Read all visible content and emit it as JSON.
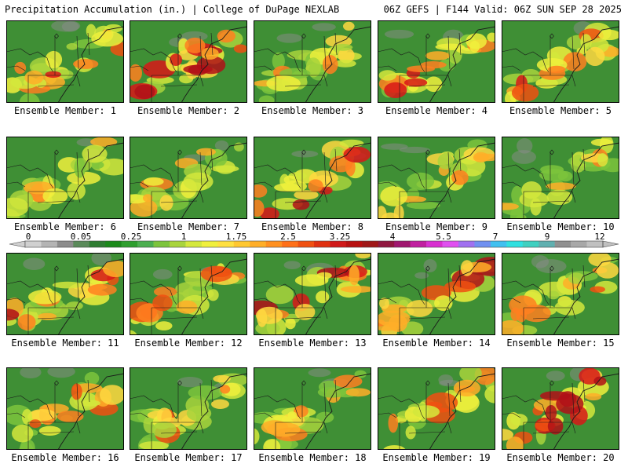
{
  "header": {
    "left": "Precipitation Accumulation (in.) | College of DuPage NEXLAB",
    "right": "06Z GEFS | F144 Valid: 06Z SUN SEP 28 2025"
  },
  "colorbar": {
    "labels": [
      "0",
      "0.05",
      "0.25",
      "1",
      "1.75",
      "2.5",
      "3.25",
      "4",
      "5.5",
      "7",
      "9",
      "12"
    ],
    "colors": [
      "#d0d0d0",
      "#b4b4b4",
      "#8c8c8c",
      "#5a8a5a",
      "#2e7d32",
      "#1b8a1b",
      "#2e9e2e",
      "#4caf50",
      "#7cc43c",
      "#a8d43c",
      "#d4e83c",
      "#f0f03c",
      "#ffe040",
      "#ffc830",
      "#ffae28",
      "#ff9020",
      "#ff7018",
      "#f05010",
      "#e03010",
      "#d01818",
      "#b81010",
      "#a01818",
      "#901840",
      "#a01870",
      "#c020a0",
      "#d830d0",
      "#e050f0",
      "#a070f0",
      "#7090f0",
      "#40c0f0",
      "#30e0e0",
      "#40d0c0",
      "#60b0b0",
      "#909090",
      "#a8a8a8",
      "#c0c0c0"
    ]
  },
  "members": [
    {
      "label": "Ensemble Member: 1",
      "heavy": 0.55
    },
    {
      "label": "Ensemble Member: 2",
      "heavy": 0.75
    },
    {
      "label": "Ensemble Member: 3",
      "heavy": 0.25
    },
    {
      "label": "Ensemble Member: 4",
      "heavy": 0.6
    },
    {
      "label": "Ensemble Member: 5",
      "heavy": 0.55
    },
    {
      "label": "Ensemble Member: 6",
      "heavy": 0.35
    },
    {
      "label": "Ensemble Member: 7",
      "heavy": 0.35
    },
    {
      "label": "Ensemble Member: 8",
      "heavy": 0.6
    },
    {
      "label": "Ensemble Member: 9",
      "heavy": 0.3
    },
    {
      "label": "Ensemble Member: 10",
      "heavy": 0.3
    },
    {
      "label": "Ensemble Member: 11",
      "heavy": 0.6
    },
    {
      "label": "Ensemble Member: 12",
      "heavy": 0.45
    },
    {
      "label": "Ensemble Member: 13",
      "heavy": 0.7
    },
    {
      "label": "Ensemble Member: 14",
      "heavy": 0.65
    },
    {
      "label": "Ensemble Member: 15",
      "heavy": 0.35
    },
    {
      "label": "Ensemble Member: 16",
      "heavy": 0.45
    },
    {
      "label": "Ensemble Member: 17",
      "heavy": 0.4
    },
    {
      "label": "Ensemble Member: 18",
      "heavy": 0.35
    },
    {
      "label": "Ensemble Member: 19",
      "heavy": 0.45
    },
    {
      "label": "Ensemble Member: 20",
      "heavy": 0.85
    }
  ]
}
